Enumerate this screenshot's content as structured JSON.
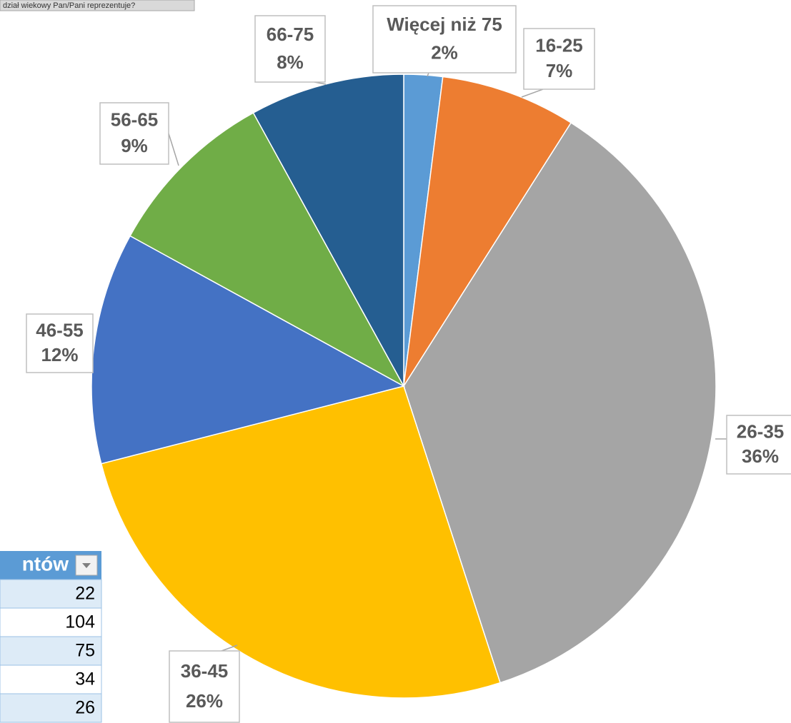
{
  "header_text": "dział wiekowy Pan/Pani reprezentuje?",
  "table": {
    "header": "ntów",
    "rows": [
      "22",
      "104",
      "75",
      "34",
      "26"
    ]
  },
  "chart_data": {
    "type": "pie",
    "categories": [
      "Więcej niż 75",
      "16-25",
      "26-35",
      "36-45",
      "46-55",
      "56-65",
      "66-75"
    ],
    "values": [
      2,
      7,
      36,
      26,
      12,
      9,
      8
    ],
    "value_labels": [
      "2%",
      "7%",
      "36%",
      "26%",
      "12%",
      "9%",
      "8%"
    ],
    "colors": [
      "#5b9bd5",
      "#ed7d31",
      "#a5a5a5",
      "#ffc000",
      "#4472c4",
      "#70ad47",
      "#255e91"
    ]
  }
}
